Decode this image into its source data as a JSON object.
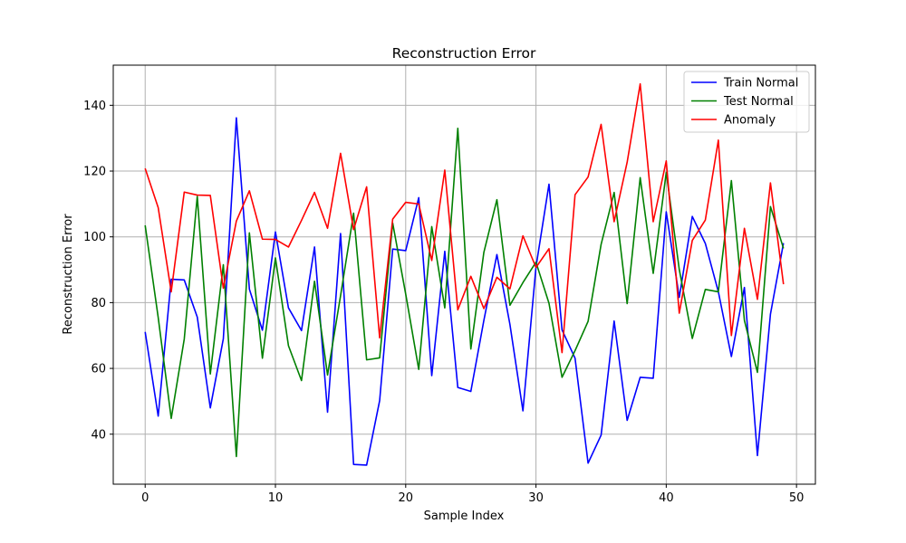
{
  "chart_data": {
    "type": "line",
    "title": "Reconstruction Error",
    "xlabel": "Sample Index",
    "ylabel": "Reconstruction Error",
    "xlim": [
      -2.45,
      51.45
    ],
    "ylim": [
      24.8,
      152.2
    ],
    "xticks": [
      0,
      10,
      20,
      30,
      40,
      50
    ],
    "yticks": [
      40,
      60,
      80,
      100,
      120,
      140
    ],
    "grid": true,
    "legend_position": "top-right",
    "x": [
      0,
      1,
      2,
      3,
      4,
      5,
      6,
      7,
      8,
      9,
      10,
      11,
      12,
      13,
      14,
      15,
      16,
      17,
      18,
      19,
      20,
      21,
      22,
      23,
      24,
      25,
      26,
      27,
      28,
      29,
      30,
      31,
      32,
      33,
      34,
      35,
      36,
      37,
      38,
      39,
      40,
      41,
      42,
      43,
      44,
      45,
      46,
      47,
      48,
      49
    ],
    "series": [
      {
        "name": "Train Normal",
        "color": "#0000ff",
        "values": [
          71.1,
          45.5,
          87.1,
          86.9,
          75.6,
          48.0,
          69.0,
          136.2,
          84.1,
          71.6,
          101.5,
          78.4,
          71.5,
          96.9,
          46.7,
          101.0,
          30.8,
          30.6,
          50.2,
          96.3,
          95.8,
          111.9,
          57.8,
          95.6,
          54.2,
          53.0,
          74.6,
          94.6,
          73.4,
          47.1,
          90.8,
          116.0,
          71.7,
          63.1,
          31.2,
          39.7,
          74.4,
          44.2,
          57.3,
          57.0,
          107.6,
          81.6,
          106.2,
          98.0,
          83.3,
          63.6,
          84.6,
          33.5,
          76.5,
          98.1
        ]
      },
      {
        "name": "Test Normal",
        "color": "#008000",
        "values": [
          103.5,
          75.5,
          44.8,
          68.9,
          112.3,
          58.3,
          91.5,
          33.2,
          101.2,
          63.1,
          93.6,
          66.9,
          56.3,
          86.5,
          58.0,
          82.1,
          107.2,
          62.6,
          63.2,
          104.2,
          82.6,
          59.7,
          103.1,
          78.4,
          133.0,
          65.9,
          95.3,
          111.3,
          79.2,
          86.1,
          92.3,
          79.8,
          57.3,
          65.4,
          74.3,
          97.7,
          113.5,
          79.7,
          118.0,
          88.9,
          119.6,
          90.1,
          69.1,
          84.0,
          83.3,
          117.1,
          74.6,
          58.8,
          109.2,
          96.5
        ]
      },
      {
        "name": "Anomaly",
        "color": "#ff0000",
        "values": [
          120.8,
          108.9,
          83.3,
          113.6,
          112.7,
          112.6,
          84.4,
          104.8,
          114.0,
          99.3,
          99.2,
          96.9,
          105.0,
          113.5,
          102.6,
          125.4,
          102.2,
          115.2,
          69.3,
          105.4,
          110.5,
          110.0,
          92.8,
          120.3,
          77.8,
          88.0,
          78.2,
          87.7,
          84.2,
          100.3,
          90.7,
          96.4,
          64.8,
          112.8,
          118.2,
          134.2,
          104.6,
          122.7,
          146.5,
          104.6,
          123.1,
          76.8,
          98.9,
          105.1,
          129.4,
          70.0,
          102.6,
          81.0,
          116.4,
          85.6
        ]
      }
    ]
  }
}
